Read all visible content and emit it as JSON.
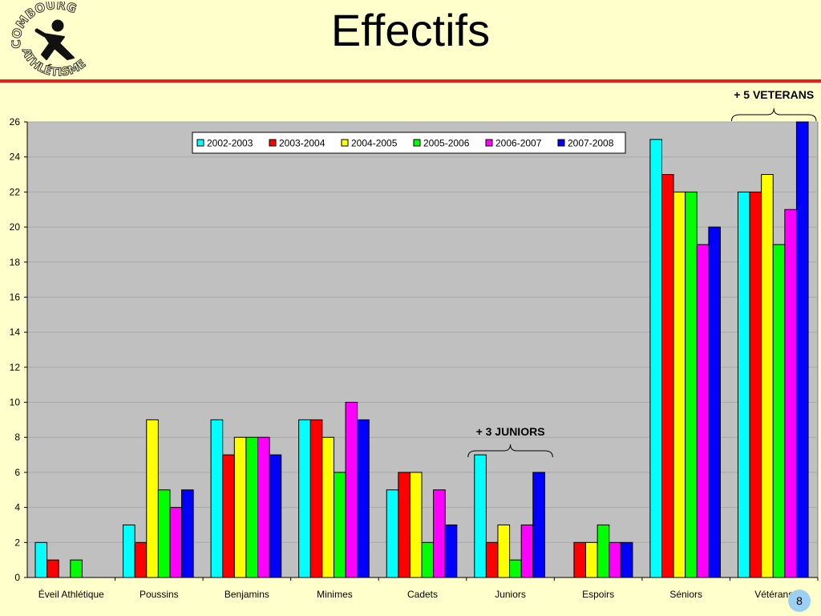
{
  "slide": {
    "title": "Effectifs",
    "page_number": "8",
    "logo_text_top": "COMBOURG",
    "logo_text_bottom": "ATHLÉTISME"
  },
  "colors": {
    "background": "#ffffcc",
    "plot_area": "#c0c0c0",
    "title_rule": "#e8201a",
    "page_badge": "#9bd0f2"
  },
  "chart_data": {
    "type": "bar",
    "title": "",
    "xlabel": "",
    "ylabel": "",
    "ylim": [
      0,
      26
    ],
    "yticks": [
      0,
      2,
      4,
      6,
      8,
      10,
      12,
      14,
      16,
      18,
      20,
      22,
      24,
      26
    ],
    "grid": true,
    "legend_position": "top-center",
    "categories": [
      "Éveil Athlétique",
      "Poussins",
      "Benjamins",
      "Minimes",
      "Cadets",
      "Juniors",
      "Espoirs",
      "Séniors",
      "Vétérans"
    ],
    "series": [
      {
        "name": "2002-2003",
        "color": "#00ffff",
        "values": [
          2,
          3,
          9,
          9,
          5,
          7,
          0,
          25,
          22
        ]
      },
      {
        "name": "2003-2004",
        "color": "#ff0000",
        "values": [
          1,
          2,
          7,
          9,
          6,
          2,
          2,
          23,
          22
        ]
      },
      {
        "name": "2004-2005",
        "color": "#ffff00",
        "values": [
          0,
          9,
          8,
          8,
          6,
          3,
          2,
          22,
          23
        ]
      },
      {
        "name": "2005-2006",
        "color": "#00ff00",
        "values": [
          1,
          5,
          8,
          6,
          2,
          1,
          3,
          22,
          19
        ]
      },
      {
        "name": "2006-2007",
        "color": "#ff00ff",
        "values": [
          0,
          4,
          8,
          10,
          5,
          3,
          2,
          19,
          21
        ]
      },
      {
        "name": "2007-2008",
        "color": "#0000ff",
        "values": [
          0,
          5,
          7,
          9,
          3,
          6,
          2,
          20,
          26
        ]
      }
    ],
    "annotations": [
      {
        "text": "+ 3 JUNIORS",
        "category": "Juniors"
      },
      {
        "text": "+ 5 VETERANS",
        "category": "Vétérans"
      }
    ]
  }
}
